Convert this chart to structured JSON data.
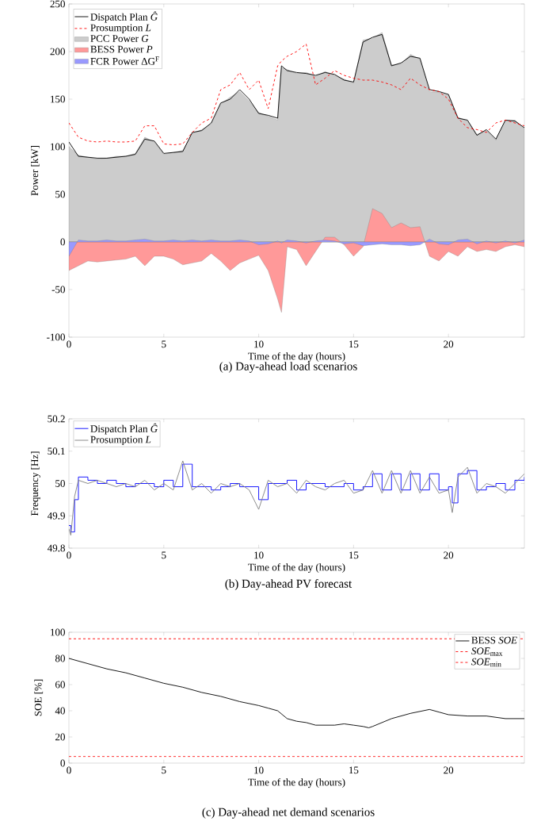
{
  "chart_data": [
    {
      "type": "line",
      "xlabel": "Time of the day (hours)",
      "ylabel": "Power [kW]",
      "annotations": [
        "(a) Day-ahead load scenarios"
      ],
      "xlim": [
        0,
        24
      ],
      "ylim": [
        -100,
        250
      ],
      "xticks": [
        0,
        5,
        10,
        15,
        20
      ],
      "yticks": [
        -100,
        -50,
        0,
        50,
        100,
        150,
        200,
        250
      ],
      "legend": "top left",
      "x": [
        0,
        0.5,
        1,
        1.5,
        2,
        2.5,
        3,
        3.5,
        4,
        4.5,
        5,
        5.5,
        6,
        6.5,
        7,
        7.5,
        8,
        8.5,
        9,
        9.5,
        10,
        10.5,
        11,
        11.2,
        11.5,
        12,
        12.5,
        13,
        13.5,
        14,
        14.5,
        15,
        15.5,
        16,
        16.5,
        17,
        17.5,
        18,
        18.5,
        19,
        19.5,
        20,
        20.5,
        21,
        21.5,
        22,
        22.5,
        23,
        23.5,
        24
      ],
      "series": [
        {
          "name": "Dispatch Plan *Ĝ*",
          "type": "line",
          "color": "#000000",
          "line_style": "solid",
          "values": [
            105,
            90,
            89,
            88,
            88,
            89,
            90,
            92,
            108,
            106,
            93,
            94,
            95,
            115,
            117,
            125,
            146,
            150,
            160,
            150,
            135,
            133,
            130,
            185,
            180,
            178,
            177,
            175,
            178,
            176,
            170,
            168,
            210,
            215,
            218,
            185,
            188,
            195,
            193,
            160,
            158,
            155,
            130,
            128,
            112,
            118,
            108,
            128,
            127,
            120
          ]
        },
        {
          "name": "Prosumption *L*",
          "type": "line",
          "color": "#ff0000",
          "line_style": "dashed",
          "values": [
            125,
            110,
            106,
            105,
            106,
            105,
            105,
            106,
            122,
            122,
            103,
            102,
            103,
            115,
            125,
            130,
            160,
            165,
            178,
            160,
            170,
            140,
            185,
            190,
            195,
            200,
            208,
            165,
            172,
            180,
            175,
            172,
            170,
            170,
            168,
            165,
            160,
            172,
            165,
            160,
            158,
            150,
            130,
            120,
            118,
            115,
            125,
            128,
            125,
            122
          ]
        },
        {
          "name": "PCC Power *G*",
          "type": "area",
          "color": "#cccccc",
          "values": [
            100,
            91,
            89,
            87,
            88,
            90,
            90,
            93,
            110,
            105,
            92,
            94,
            96,
            114,
            118,
            124,
            145,
            152,
            158,
            148,
            136,
            132,
            128,
            183,
            181,
            177,
            178,
            174,
            179,
            175,
            171,
            167,
            212,
            214,
            220,
            186,
            187,
            197,
            192,
            158,
            157,
            154,
            131,
            127,
            113,
            117,
            107,
            127,
            128,
            119
          ]
        },
        {
          "name": "BESS Power *P*",
          "type": "area",
          "color": "#ff9999",
          "values": [
            -30,
            -25,
            -20,
            -21,
            -20,
            -19,
            -18,
            -15,
            -25,
            -15,
            -15,
            -18,
            -24,
            -22,
            -20,
            -12,
            -20,
            -30,
            -22,
            -18,
            -14,
            -30,
            -60,
            -74,
            -5,
            -8,
            -25,
            -10,
            5,
            5,
            -3,
            -15,
            -5,
            35,
            30,
            15,
            20,
            15,
            16,
            -15,
            -20,
            -10,
            -15,
            -5,
            -10,
            -8,
            -10,
            -5,
            -3,
            -5
          ]
        },
        {
          "name": "FCR Power ΔG$^{F}$",
          "type": "area",
          "color": "#9999ff",
          "values": [
            -15,
            2,
            1,
            1,
            2,
            1,
            1,
            2,
            3,
            1,
            1,
            2,
            1,
            2,
            1,
            2,
            1,
            1,
            2,
            1,
            -3,
            -2,
            1,
            -1,
            2,
            1,
            -1,
            1,
            2,
            1,
            -2,
            -1,
            -4,
            -3,
            -2,
            -3,
            -3,
            -4,
            -3,
            3,
            -2,
            -3,
            2,
            3,
            -2,
            1,
            -1,
            1,
            -1,
            2
          ]
        }
      ]
    },
    {
      "type": "line",
      "xlabel": "Time of the day (hours)",
      "ylabel": "Frequency [Hz]",
      "annotations": [
        "(b) Day-ahead PV forecast"
      ],
      "xlim": [
        0,
        24
      ],
      "ylim": [
        49.8,
        50.2
      ],
      "xticks": [
        0,
        5,
        10,
        15,
        20
      ],
      "yticks": [
        49.8,
        49.9,
        50,
        50.1,
        50.2
      ],
      "legend": "top left",
      "x": [
        0,
        0.1,
        0.3,
        0.5,
        1,
        1.5,
        2,
        2.5,
        3,
        3.5,
        4,
        4.5,
        5,
        5.5,
        6,
        6.5,
        7,
        7.5,
        8,
        8.5,
        9,
        9.5,
        10,
        10.5,
        11,
        11.5,
        12,
        12.5,
        13,
        13.5,
        14,
        14.5,
        15,
        15.5,
        16,
        16.5,
        17,
        17.5,
        18,
        18.5,
        19,
        19.5,
        20,
        20.2,
        20.5,
        21,
        21.5,
        22,
        22.5,
        23,
        23.5,
        24
      ],
      "series": [
        {
          "name": "Dispatch Plan *Ĝ*",
          "type": "step",
          "color": "#0000ff",
          "values": [
            49.87,
            49.85,
            49.95,
            50.02,
            50.01,
            50.0,
            50.01,
            50.0,
            49.99,
            50.0,
            50.0,
            49.99,
            50.01,
            49.99,
            50.06,
            49.99,
            49.99,
            49.98,
            49.99,
            50.0,
            49.99,
            49.99,
            49.95,
            50.0,
            50.0,
            50.01,
            49.98,
            50.0,
            50.0,
            49.99,
            49.99,
            50.0,
            49.98,
            49.99,
            50.03,
            49.98,
            50.03,
            49.98,
            50.03,
            49.98,
            50.03,
            49.98,
            49.99,
            49.94,
            50.03,
            50.04,
            49.98,
            49.99,
            50.0,
            49.98,
            50.01,
            50.02
          ]
        },
        {
          "name": "Prosumption *L*",
          "type": "line",
          "color": "#808080",
          "values": [
            49.86,
            49.84,
            49.96,
            50.01,
            50.0,
            50.01,
            50.0,
            49.99,
            50.0,
            49.99,
            50.01,
            49.98,
            50.0,
            49.98,
            50.07,
            49.98,
            50.0,
            49.97,
            50.0,
            49.99,
            50.0,
            49.98,
            49.92,
            50.01,
            49.99,
            50.0,
            49.97,
            50.01,
            49.99,
            49.98,
            50.0,
            50.01,
            49.97,
            49.98,
            50.04,
            49.97,
            50.04,
            49.97,
            50.04,
            49.97,
            50.02,
            49.97,
            49.98,
            49.91,
            50.02,
            50.05,
            49.97,
            50.0,
            49.99,
            49.97,
            50.0,
            50.03
          ]
        }
      ]
    },
    {
      "type": "line",
      "xlabel": "Time of the day (hours)",
      "ylabel": "SOE [%]",
      "annotations": [
        "(c) Day-ahead net demand scenarios"
      ],
      "xlim": [
        0,
        24
      ],
      "ylim": [
        0,
        100
      ],
      "xticks": [
        0,
        5,
        10,
        15,
        20
      ],
      "yticks": [
        0,
        20,
        40,
        60,
        80,
        100
      ],
      "legend": "top right",
      "series": [
        {
          "name": "BESS *SOE*",
          "color": "#000000",
          "line_style": "solid",
          "x": [
            0,
            1,
            2,
            3,
            4,
            5,
            6,
            7,
            8,
            9,
            10,
            10.5,
            11,
            11.5,
            12,
            12.5,
            13,
            14,
            14.5,
            15,
            15.5,
            15.8,
            16,
            17,
            18,
            19,
            19.5,
            20,
            21,
            22,
            23,
            24
          ],
          "values": [
            80,
            76,
            72,
            69,
            65,
            61,
            58,
            54,
            51,
            47,
            44,
            42,
            40,
            34,
            32,
            31,
            29,
            29,
            30,
            29,
            28,
            27,
            28,
            34,
            38,
            41,
            39,
            37,
            36,
            36,
            34,
            34
          ]
        },
        {
          "name": "*SOE*$_{max}$",
          "color": "#ff0000",
          "line_style": "dashed",
          "x": [
            0,
            24
          ],
          "values": [
            95,
            95
          ]
        },
        {
          "name": "*SOE*$_{min}$",
          "color": "#ff0000",
          "line_style": "dashed",
          "x": [
            0,
            24
          ],
          "values": [
            5,
            5
          ]
        }
      ]
    }
  ]
}
